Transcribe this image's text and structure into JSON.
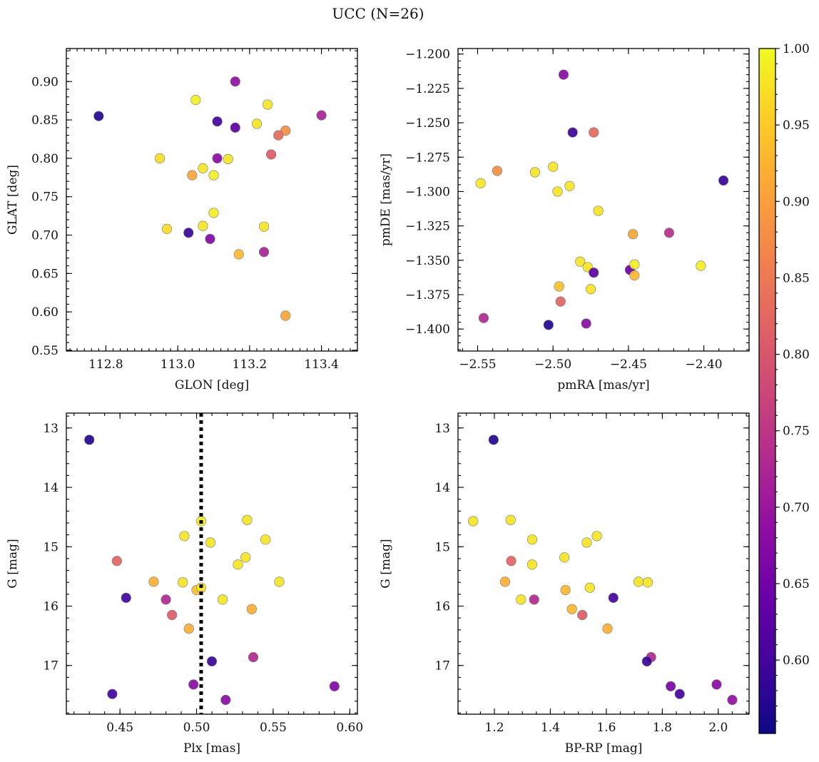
{
  "chart_data": {
    "type": "scatter",
    "title": "UCC (N=26)",
    "colormap": "plasma",
    "colorbar": {
      "range": [
        0.552,
        1.0
      ],
      "ticks": [
        0.6,
        0.65,
        0.7,
        0.75,
        0.8,
        0.85,
        0.9,
        0.95,
        1.0
      ],
      "tick_labels": [
        "0.60",
        "0.65",
        "0.70",
        "0.75",
        "0.80",
        "0.85",
        "0.90",
        "0.95",
        "1.00"
      ]
    },
    "marker_edge_color": "#6e6e6e",
    "panels": [
      {
        "name": "galactic-coordinates",
        "xlabel": "GLON [deg]",
        "ylabel": "GLAT [deg]",
        "xlim": [
          112.69,
          113.5
        ],
        "ylim": [
          0.549,
          0.943
        ],
        "invert_y": false,
        "xticks": [
          112.8,
          113.0,
          113.2,
          113.4
        ],
        "xtick_labels": [
          "112.8",
          "113.0",
          "113.2",
          "113.4"
        ],
        "yticks": [
          0.55,
          0.6,
          0.65,
          0.7,
          0.75,
          0.8,
          0.85,
          0.9
        ],
        "ytick_labels": [
          "0.55",
          "0.60",
          "0.65",
          "0.70",
          "0.75",
          "0.80",
          "0.85",
          "0.90"
        ],
        "x_minor": 0.02,
        "y_minor": 0.01,
        "points": [
          {
            "x": 112.78,
            "y": 0.855,
            "c": 0.57
          },
          {
            "x": 113.16,
            "y": 0.9,
            "c": 0.69
          },
          {
            "x": 113.05,
            "y": 0.876,
            "c": 0.99
          },
          {
            "x": 113.25,
            "y": 0.87,
            "c": 0.98
          },
          {
            "x": 113.11,
            "y": 0.848,
            "c": 0.6
          },
          {
            "x": 113.16,
            "y": 0.84,
            "c": 0.63
          },
          {
            "x": 113.22,
            "y": 0.845,
            "c": 0.98
          },
          {
            "x": 113.3,
            "y": 0.836,
            "c": 0.88
          },
          {
            "x": 113.28,
            "y": 0.83,
            "c": 0.83
          },
          {
            "x": 113.4,
            "y": 0.856,
            "c": 0.72
          },
          {
            "x": 113.26,
            "y": 0.805,
            "c": 0.81
          },
          {
            "x": 112.95,
            "y": 0.8,
            "c": 0.97
          },
          {
            "x": 113.11,
            "y": 0.8,
            "c": 0.68
          },
          {
            "x": 113.14,
            "y": 0.799,
            "c": 0.98
          },
          {
            "x": 113.07,
            "y": 0.787,
            "c": 0.98
          },
          {
            "x": 113.04,
            "y": 0.778,
            "c": 0.91
          },
          {
            "x": 113.1,
            "y": 0.778,
            "c": 0.99
          },
          {
            "x": 113.1,
            "y": 0.729,
            "c": 0.99
          },
          {
            "x": 112.97,
            "y": 0.708,
            "c": 0.97
          },
          {
            "x": 113.07,
            "y": 0.712,
            "c": 0.98
          },
          {
            "x": 113.24,
            "y": 0.711,
            "c": 0.98
          },
          {
            "x": 113.03,
            "y": 0.703,
            "c": 0.59
          },
          {
            "x": 113.09,
            "y": 0.695,
            "c": 0.67
          },
          {
            "x": 113.24,
            "y": 0.678,
            "c": 0.72
          },
          {
            "x": 113.17,
            "y": 0.675,
            "c": 0.93
          },
          {
            "x": 113.3,
            "y": 0.595,
            "c": 0.91
          }
        ]
      },
      {
        "name": "proper-motions",
        "xlabel": "pmRA [mas/yr]",
        "ylabel": "pmDE [mas/yr]",
        "xlim": [
          -2.563,
          -2.37
        ],
        "ylim": [
          -1.416,
          -1.196
        ],
        "invert_y": false,
        "xticks": [
          -2.55,
          -2.5,
          -2.45,
          -2.4
        ],
        "xtick_labels": [
          "−2.55",
          "−2.50",
          "−2.45",
          "−2.40"
        ],
        "yticks": [
          -1.4,
          -1.375,
          -1.35,
          -1.325,
          -1.3,
          -1.275,
          -1.25,
          -1.225,
          -1.2
        ],
        "ytick_labels": [
          "−1.400",
          "−1.375",
          "−1.350",
          "−1.325",
          "−1.300",
          "−1.275",
          "−1.250",
          "−1.225",
          "−1.200"
        ],
        "x_minor": 0.01,
        "y_minor": 0.005,
        "points": [
          {
            "x": -2.493,
            "y": -1.215,
            "c": 0.68
          },
          {
            "x": -2.487,
            "y": -1.257,
            "c": 0.59
          },
          {
            "x": -2.473,
            "y": -1.257,
            "c": 0.83
          },
          {
            "x": -2.537,
            "y": -1.285,
            "c": 0.88
          },
          {
            "x": -2.548,
            "y": -1.294,
            "c": 0.98
          },
          {
            "x": -2.512,
            "y": -1.286,
            "c": 0.98
          },
          {
            "x": -2.5,
            "y": -1.282,
            "c": 0.98
          },
          {
            "x": -2.497,
            "y": -1.3,
            "c": 0.98
          },
          {
            "x": -2.489,
            "y": -1.296,
            "c": 0.98
          },
          {
            "x": -2.47,
            "y": -1.314,
            "c": 0.98
          },
          {
            "x": -2.387,
            "y": -1.292,
            "c": 0.59
          },
          {
            "x": -2.447,
            "y": -1.331,
            "c": 0.91
          },
          {
            "x": -2.423,
            "y": -1.33,
            "c": 0.74
          },
          {
            "x": -2.482,
            "y": -1.351,
            "c": 0.98
          },
          {
            "x": -2.477,
            "y": -1.355,
            "c": 0.98
          },
          {
            "x": -2.473,
            "y": -1.359,
            "c": 0.63
          },
          {
            "x": -2.449,
            "y": -1.357,
            "c": 0.64
          },
          {
            "x": -2.446,
            "y": -1.353,
            "c": 0.99
          },
          {
            "x": -2.446,
            "y": -1.361,
            "c": 0.93
          },
          {
            "x": -2.402,
            "y": -1.354,
            "c": 0.99
          },
          {
            "x": -2.496,
            "y": -1.369,
            "c": 0.94
          },
          {
            "x": -2.475,
            "y": -1.371,
            "c": 0.98
          },
          {
            "x": -2.495,
            "y": -1.38,
            "c": 0.82
          },
          {
            "x": -2.546,
            "y": -1.392,
            "c": 0.73
          },
          {
            "x": -2.503,
            "y": -1.397,
            "c": 0.57
          },
          {
            "x": -2.478,
            "y": -1.396,
            "c": 0.68
          }
        ]
      },
      {
        "name": "g-vs-parallax",
        "xlabel": "Plx [mas]",
        "ylabel": "G [mag]",
        "xlim": [
          0.415,
          0.605
        ],
        "ylim": [
          12.75,
          17.82
        ],
        "invert_y": true,
        "xticks": [
          0.45,
          0.5,
          0.55,
          0.6
        ],
        "xtick_labels": [
          "0.45",
          "0.50",
          "0.55",
          "0.60"
        ],
        "yticks": [
          13,
          14,
          15,
          16,
          17
        ],
        "ytick_labels": [
          "13",
          "14",
          "15",
          "16",
          "17"
        ],
        "x_minor": 0.01,
        "y_minor": 0.2,
        "vline_x": 0.503,
        "points": [
          {
            "x": 0.43,
            "y": 13.2,
            "c": 0.57
          },
          {
            "x": 0.503,
            "y": 14.57,
            "c": 0.99
          },
          {
            "x": 0.533,
            "y": 14.55,
            "c": 0.98
          },
          {
            "x": 0.492,
            "y": 14.82,
            "c": 0.98
          },
          {
            "x": 0.509,
            "y": 14.93,
            "c": 0.98
          },
          {
            "x": 0.545,
            "y": 14.88,
            "c": 0.98
          },
          {
            "x": 0.532,
            "y": 15.18,
            "c": 0.98
          },
          {
            "x": 0.527,
            "y": 15.3,
            "c": 0.98
          },
          {
            "x": 0.448,
            "y": 15.24,
            "c": 0.82
          },
          {
            "x": 0.472,
            "y": 15.59,
            "c": 0.92
          },
          {
            "x": 0.491,
            "y": 15.6,
            "c": 0.98
          },
          {
            "x": 0.554,
            "y": 15.59,
            "c": 0.98
          },
          {
            "x": 0.5,
            "y": 15.73,
            "c": 0.94
          },
          {
            "x": 0.503,
            "y": 15.69,
            "c": 0.98
          },
          {
            "x": 0.454,
            "y": 15.86,
            "c": 0.6
          },
          {
            "x": 0.48,
            "y": 15.89,
            "c": 0.73
          },
          {
            "x": 0.517,
            "y": 15.89,
            "c": 0.98
          },
          {
            "x": 0.536,
            "y": 16.05,
            "c": 0.92
          },
          {
            "x": 0.484,
            "y": 16.15,
            "c": 0.81
          },
          {
            "x": 0.495,
            "y": 16.38,
            "c": 0.92
          },
          {
            "x": 0.537,
            "y": 16.86,
            "c": 0.73
          },
          {
            "x": 0.51,
            "y": 16.93,
            "c": 0.59
          },
          {
            "x": 0.498,
            "y": 17.32,
            "c": 0.68
          },
          {
            "x": 0.59,
            "y": 17.35,
            "c": 0.67
          },
          {
            "x": 0.445,
            "y": 17.48,
            "c": 0.6
          },
          {
            "x": 0.519,
            "y": 17.58,
            "c": 0.68
          }
        ]
      },
      {
        "name": "color-magnitude",
        "xlabel": "BP-RP [mag]",
        "ylabel": "G [mag]",
        "xlim": [
          1.07,
          2.11
        ],
        "ylim": [
          12.75,
          17.82
        ],
        "invert_y": true,
        "xticks": [
          1.2,
          1.4,
          1.6,
          1.8,
          2.0
        ],
        "xtick_labels": [
          "1.2",
          "1.4",
          "1.6",
          "1.8",
          "2.0"
        ],
        "yticks": [
          13,
          14,
          15,
          16,
          17
        ],
        "ytick_labels": [
          "13",
          "14",
          "15",
          "16",
          "17"
        ],
        "x_minor": 0.05,
        "y_minor": 0.2,
        "points": [
          {
            "x": 1.197,
            "y": 13.2,
            "c": 0.57
          },
          {
            "x": 1.124,
            "y": 14.57,
            "c": 0.98
          },
          {
            "x": 1.258,
            "y": 14.55,
            "c": 0.98
          },
          {
            "x": 1.335,
            "y": 14.88,
            "c": 0.98
          },
          {
            "x": 1.566,
            "y": 14.82,
            "c": 0.98
          },
          {
            "x": 1.53,
            "y": 14.93,
            "c": 0.98
          },
          {
            "x": 1.45,
            "y": 15.18,
            "c": 0.98
          },
          {
            "x": 1.335,
            "y": 15.3,
            "c": 0.98
          },
          {
            "x": 1.26,
            "y": 15.24,
            "c": 0.82
          },
          {
            "x": 1.238,
            "y": 15.59,
            "c": 0.92
          },
          {
            "x": 1.715,
            "y": 15.59,
            "c": 0.98
          },
          {
            "x": 1.748,
            "y": 15.6,
            "c": 0.98
          },
          {
            "x": 1.454,
            "y": 15.73,
            "c": 0.93
          },
          {
            "x": 1.541,
            "y": 15.69,
            "c": 0.98
          },
          {
            "x": 1.295,
            "y": 15.89,
            "c": 0.98
          },
          {
            "x": 1.342,
            "y": 15.89,
            "c": 0.73
          },
          {
            "x": 1.625,
            "y": 15.86,
            "c": 0.6
          },
          {
            "x": 1.477,
            "y": 16.05,
            "c": 0.93
          },
          {
            "x": 1.514,
            "y": 16.15,
            "c": 0.81
          },
          {
            "x": 1.604,
            "y": 16.38,
            "c": 0.92
          },
          {
            "x": 1.76,
            "y": 16.86,
            "c": 0.73
          },
          {
            "x": 1.745,
            "y": 16.93,
            "c": 0.59
          },
          {
            "x": 1.994,
            "y": 17.32,
            "c": 0.68
          },
          {
            "x": 1.83,
            "y": 17.35,
            "c": 0.66
          },
          {
            "x": 1.862,
            "y": 17.48,
            "c": 0.6
          },
          {
            "x": 2.05,
            "y": 17.58,
            "c": 0.69
          }
        ]
      }
    ]
  }
}
